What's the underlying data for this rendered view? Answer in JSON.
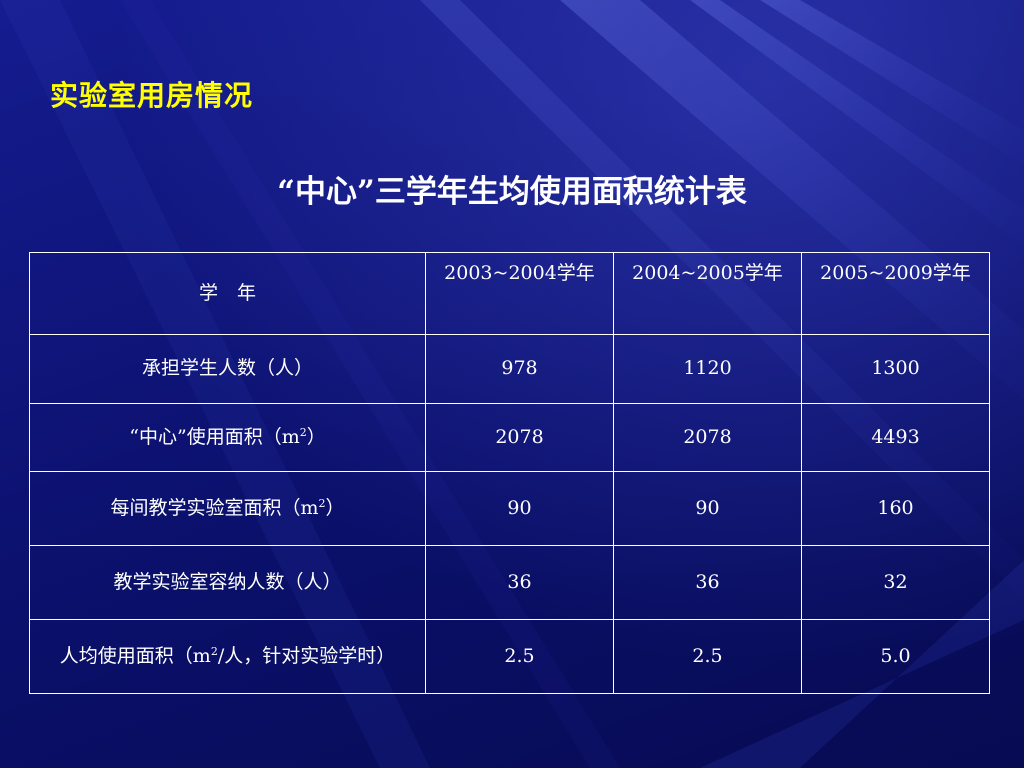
{
  "slide_title": "实验室用房情况",
  "table_title": "“中心”三学年生均使用面积统计表",
  "table": {
    "header": {
      "label": "学　年",
      "years": [
        "2003~2004学年",
        "2004~2005学年",
        "2005~2009学年"
      ]
    },
    "rows": [
      {
        "label": "承担学生人数（人）",
        "values": [
          "978",
          "1120",
          "1300"
        ]
      },
      {
        "label_pre": "“中心”使用面积（m",
        "label_sup": "2",
        "label_post": "）",
        "values": [
          "2078",
          "2078",
          "4493"
        ]
      },
      {
        "label_pre": "每间教学实验室面积（m",
        "label_sup": "2",
        "label_post": "）",
        "values": [
          "90",
          "90",
          "160"
        ]
      },
      {
        "label": "教学实验室容纳人数（人）",
        "values": [
          "36",
          "36",
          "32"
        ]
      },
      {
        "label_pre": "人均使用面积（m",
        "label_sup": "2",
        "label_post": "/人，针对实验学时）",
        "values": [
          "2.5",
          "2.5",
          "5.0"
        ]
      }
    ]
  },
  "colors": {
    "background": "#0c1273",
    "title": "#ffff00",
    "text": "#ffffff"
  }
}
